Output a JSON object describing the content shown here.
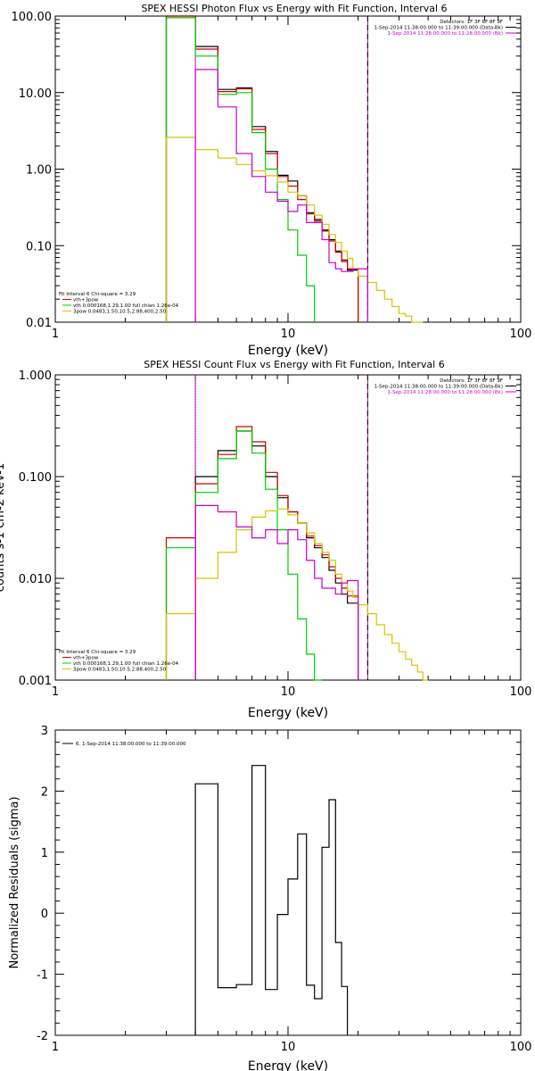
{
  "chart_data": [
    {
      "type": "line",
      "title": "SPEX HESSI Photon Flux vs Energy with Fit Function, Interval 6",
      "xlabel": "Energy (keV)",
      "ylabel": "",
      "x_scale": "log",
      "y_scale": "log",
      "xlim": [
        1,
        100
      ],
      "ylim": [
        0.01,
        100
      ],
      "xtick_labels": [
        "1",
        "10",
        "100"
      ],
      "ytick_labels": [
        "0.01",
        "0.10",
        "1.00",
        "10.00",
        "100.00"
      ],
      "bin_edges": [
        3.0,
        4.0,
        5.0,
        6.0,
        7.0,
        8.0,
        9.0,
        10.0,
        11.0,
        12.0,
        13.0,
        14.0,
        15.0,
        16.0,
        17.0,
        18.0,
        19.0,
        20.0,
        22.0,
        24.0,
        26.0,
        28.0,
        30.0,
        32.0,
        34.0,
        36.0,
        38.0,
        40.0
      ],
      "header_lines": [
        "Detectors: 1F 3F 6F 8F 9F",
        "1-Sep-2014 11:38:00.000 to 11:39:00.000 (Data-Bk)",
        "1-Sep-2014 11:28:00.000 to 11:28:00.000 (Bk)"
      ],
      "header_colors": [
        "#000000",
        "#000000",
        "#cc00cc"
      ],
      "legend_lines": [
        "Fit Interval 6   Chi-square = 3.29",
        "vth+3pow",
        "vth 0.000168,1.29,1.00  full chian 1.26e-04",
        "3pow 0.0483,1.50,10.5,2.88,400,2.50"
      ],
      "legend_colors": [
        "#000000",
        "#cc0000",
        "#00cc00",
        "#d4c400"
      ],
      "vlines": [
        {
          "x": 4.0,
          "style": "solid",
          "color": "#cc00cc"
        },
        {
          "x": 22.0,
          "style": "solid",
          "color": "#cc00cc"
        },
        {
          "x": 22.0,
          "style": "dashed",
          "color": "#000000"
        }
      ],
      "series": [
        {
          "color": "#000000",
          "values": [
            100,
            40,
            11,
            11.5,
            3.6,
            1.7,
            0.83,
            0.7,
            0.45,
            0.27,
            0.22,
            0.16,
            0.12,
            0.085,
            0.065,
            0.048,
            0.048,
            null,
            null,
            null,
            null,
            null,
            null,
            null,
            null,
            null,
            null
          ]
        },
        {
          "color": "#cc0000",
          "values": [
            100,
            37,
            10.3,
            11.2,
            3.3,
            1.6,
            0.8,
            0.6,
            0.4,
            0.26,
            0.21,
            0.155,
            0.115,
            0.082,
            0.062,
            0.05,
            0.05,
            null,
            null,
            null,
            null,
            null,
            null,
            null,
            null,
            null,
            null
          ]
        },
        {
          "color": "#00cc00",
          "values": [
            95,
            30,
            9.5,
            10.0,
            3.0,
            1.0,
            0.4,
            0.16,
            0.075,
            0.03,
            null,
            null,
            null,
            null,
            null,
            null,
            null,
            null,
            null,
            null,
            null,
            null,
            null,
            null,
            null,
            null,
            null
          ]
        },
        {
          "color": "#d4c400",
          "values": [
            2.6,
            1.8,
            1.4,
            1.15,
            0.95,
            0.82,
            0.68,
            0.5,
            0.45,
            0.34,
            0.25,
            0.19,
            0.14,
            0.11,
            0.085,
            0.068,
            0.05,
            0.04,
            0.033,
            0.026,
            0.02,
            0.016,
            0.013,
            0.012,
            0.01,
            0.01,
            null
          ]
        },
        {
          "color": "#cc00cc",
          "values": [
            null,
            20,
            6.5,
            1.6,
            0.8,
            0.5,
            0.38,
            0.28,
            0.34,
            0.2,
            0.2,
            0.12,
            0.06,
            0.05,
            0.046,
            0.046,
            0.05,
            0.05,
            null,
            null,
            null,
            null,
            null,
            null,
            null,
            null,
            null
          ]
        }
      ]
    },
    {
      "type": "line",
      "title": "SPEX HESSI Count Flux vs Energy with Fit Function, Interval 6",
      "xlabel": "Energy (keV)",
      "ylabel": "counts s-1 cm-2 keV-1",
      "x_scale": "log",
      "y_scale": "log",
      "xlim": [
        1,
        100
      ],
      "ylim": [
        0.001,
        1.0
      ],
      "xtick_labels": [
        "1",
        "10",
        "100"
      ],
      "ytick_labels": [
        "0.001",
        "0.010",
        "0.100",
        "1.000"
      ],
      "bin_edges": [
        3.0,
        4.0,
        5.0,
        6.0,
        7.0,
        8.0,
        9.0,
        10.0,
        11.0,
        12.0,
        13.0,
        14.0,
        15.0,
        16.0,
        17.0,
        18.0,
        19.0,
        20.0,
        22.0,
        24.0,
        26.0,
        28.0,
        30.0,
        32.0,
        34.0,
        36.0,
        38.0,
        40.0,
        45.0
      ],
      "header_lines": [
        "Detectors: 1F 3F 6F 8F 9F",
        "1-Sep-2014 11:38:00.000 to 11:39:00.000 (Data-Bk)",
        "1-Sep-2014 11:28:00.000 to 11:28:00.000 (Bk)"
      ],
      "header_colors": [
        "#000000",
        "#000000",
        "#cc00cc"
      ],
      "legend_lines": [
        "Fit Interval 6   Chi-square = 3.29",
        "vth+3pow",
        "vth 0.000168,1.29,1.00  full chian 1.26e-04",
        "3pow 0.0483,1.50,10.5,2.88,400,2.50"
      ],
      "legend_colors": [
        "#000000",
        "#cc0000",
        "#00cc00",
        "#d4c400"
      ],
      "vlines": [
        {
          "x": 4.0,
          "style": "dotted",
          "color": "#000000"
        },
        {
          "x": 4.0,
          "style": "solid",
          "color": "#cc00cc"
        },
        {
          "x": 22.0,
          "style": "solid",
          "color": "#cc00cc"
        },
        {
          "x": 22.0,
          "style": "dashed",
          "color": "#000000"
        }
      ],
      "series": [
        {
          "color": "#000000",
          "values": [
            null,
            0.1,
            0.18,
            0.28,
            0.2,
            0.1,
            0.062,
            0.045,
            0.035,
            0.025,
            0.02,
            0.016,
            0.012,
            0.009,
            0.007,
            0.0057,
            0.0057,
            null,
            null,
            null,
            null,
            null,
            null,
            null,
            null,
            null,
            null,
            null
          ]
        },
        {
          "color": "#cc0000",
          "values": [
            0.025,
            0.085,
            0.165,
            0.31,
            0.22,
            0.11,
            0.065,
            0.045,
            0.035,
            0.026,
            0.021,
            0.017,
            0.013,
            0.01,
            0.008,
            0.0067,
            0.0067,
            null,
            null,
            null,
            null,
            null,
            null,
            null,
            null,
            null,
            null,
            null
          ]
        },
        {
          "color": "#00cc00",
          "values": [
            0.02,
            0.07,
            0.15,
            0.28,
            0.17,
            0.075,
            0.03,
            0.011,
            0.004,
            0.0018,
            0.001,
            null,
            null,
            null,
            null,
            null,
            null,
            null,
            null,
            null,
            null,
            null,
            null,
            null,
            null,
            null,
            null,
            null
          ]
        },
        {
          "color": "#d4c400",
          "values": [
            0.0045,
            0.01,
            0.018,
            0.03,
            0.04,
            0.046,
            0.048,
            0.042,
            0.035,
            0.028,
            0.022,
            0.018,
            0.015,
            0.011,
            0.009,
            0.0075,
            0.0065,
            0.0055,
            0.0045,
            0.0035,
            0.0028,
            0.0023,
            0.0019,
            0.0016,
            0.0014,
            0.0012,
            0.001,
            null
          ]
        },
        {
          "color": "#cc00cc",
          "values": [
            null,
            0.052,
            0.045,
            0.032,
            0.025,
            0.03,
            0.022,
            0.03,
            0.024,
            0.015,
            0.01,
            0.008,
            0.008,
            0.007,
            0.009,
            0.0095,
            0.0095,
            null,
            null,
            null,
            null,
            null,
            null,
            null,
            null,
            null,
            null,
            null
          ]
        }
      ]
    },
    {
      "type": "line",
      "title": "",
      "xlabel": "Energy (keV)",
      "ylabel": "Normalized Residuals (sigma)",
      "x_scale": "log",
      "y_scale": "linear",
      "xlim": [
        1,
        100
      ],
      "ylim": [
        -2,
        3
      ],
      "xtick_labels": [
        "1",
        "10",
        "100"
      ],
      "ytick_labels": [
        "-2",
        "-1",
        "0",
        "1",
        "2",
        "3"
      ],
      "legend_lines": [
        "6.  1-Sep-2014 11:38:00.000 to 11:39:00.000"
      ],
      "bin_edges": [
        4.0,
        5.0,
        6.0,
        7.0,
        8.0,
        9.0,
        10.0,
        11.0,
        12.0,
        13.0,
        14.0,
        15.0,
        16.0,
        17.0,
        18.0,
        19.0,
        20.0,
        22.0
      ],
      "series": [
        {
          "color": "#000000",
          "values": [
            2.12,
            -1.22,
            -1.17,
            2.42,
            -1.25,
            -0.02,
            0.56,
            1.3,
            -1.18,
            -1.4,
            1.08,
            1.86,
            -0.48,
            -1.2,
            null,
            null,
            null
          ]
        }
      ]
    }
  ]
}
